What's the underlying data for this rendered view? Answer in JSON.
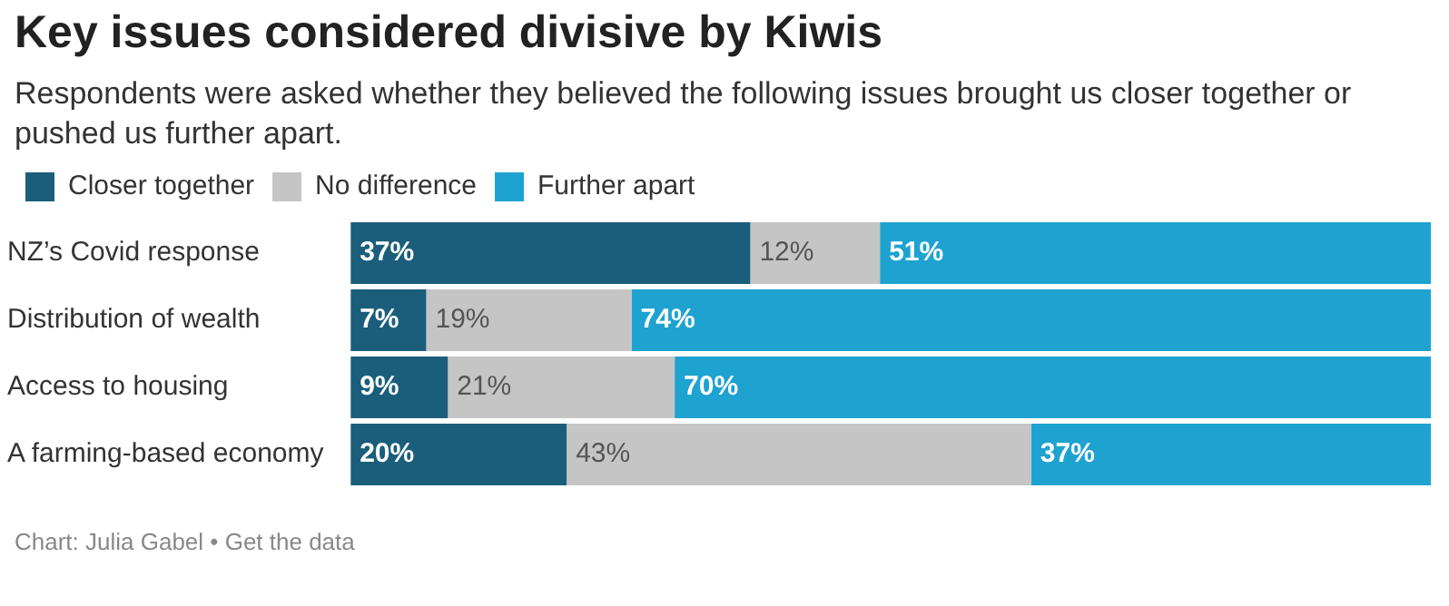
{
  "chart_data": {
    "type": "bar",
    "orientation": "horizontal",
    "stacked": true,
    "title": "Key issues considered divisive by Kiwis",
    "subtitle": "Respondents were asked whether they believed the following issues brought us closer together or pushed us further apart.",
    "categories": [
      "NZ’s Covid response",
      "Distribution of wealth",
      "Access to housing",
      "A farming-based economy"
    ],
    "xlim": [
      0,
      100
    ],
    "tick_labels": "y",
    "legend": "top left",
    "series": [
      {
        "name": "Closer together",
        "color": "#1b5e7b",
        "values": [
          37,
          7,
          9,
          20
        ],
        "value_labels": [
          "37%",
          "7%",
          "9%",
          "20%"
        ]
      },
      {
        "name": "No difference",
        "color": "#c5c5c5",
        "values": [
          12,
          19,
          21,
          43
        ],
        "value_labels": [
          "12%",
          "19%",
          "21%",
          "43%"
        ]
      },
      {
        "name": "Further apart",
        "color": "#1ea3d0",
        "values": [
          51,
          74,
          70,
          37
        ],
        "value_labels": [
          "51%",
          "74%",
          "70%",
          "37%"
        ]
      }
    ],
    "annotations": [
      "Chart: Julia Gabel • Get the data"
    ]
  }
}
